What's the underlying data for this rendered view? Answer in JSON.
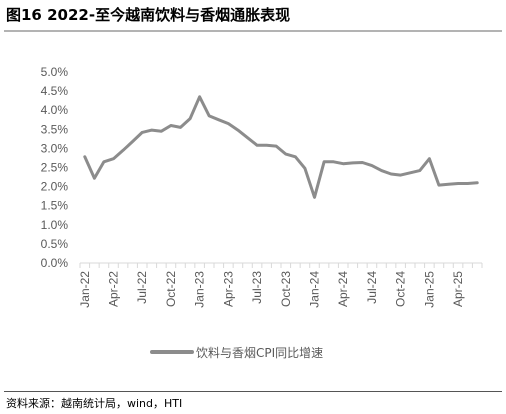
{
  "figure": {
    "title": "图16 2022-至今越南饮料与香烟通胀表现",
    "source": "资料来源：越南统计局，wind，HTI"
  },
  "colors": {
    "line": "#8c8c8c",
    "axis": "#d9d9d9",
    "text": "#595959",
    "rule": "#b3b3b3"
  },
  "chart_data": {
    "type": "line",
    "title": "",
    "xlabel": "",
    "ylabel": "",
    "ylim": [
      0,
      5
    ],
    "y_ticks": [
      "0.0%",
      "0.5%",
      "1.0%",
      "1.5%",
      "2.0%",
      "2.5%",
      "3.0%",
      "3.5%",
      "4.0%",
      "4.5%",
      "5.0%"
    ],
    "x_tick_labels": [
      "Jan-22",
      "Apr-22",
      "Jul-22",
      "Oct-22",
      "Jan-23",
      "Apr-23",
      "Jul-23",
      "Oct-23",
      "Jan-24",
      "Apr-24",
      "Jul-24",
      "Oct-24",
      "Jan-25",
      "Apr-25"
    ],
    "legend_position": "bottom",
    "grid": false,
    "x": [
      "Jan-22",
      "Feb-22",
      "Mar-22",
      "Apr-22",
      "May-22",
      "Jun-22",
      "Jul-22",
      "Aug-22",
      "Sep-22",
      "Oct-22",
      "Nov-22",
      "Dec-22",
      "Jan-23",
      "Feb-23",
      "Mar-23",
      "Apr-23",
      "May-23",
      "Jun-23",
      "Jul-23",
      "Aug-23",
      "Sep-23",
      "Oct-23",
      "Nov-23",
      "Dec-23",
      "Jan-24",
      "Feb-24",
      "Mar-24",
      "Apr-24",
      "May-24",
      "Jun-24",
      "Jul-24",
      "Aug-24",
      "Sep-24",
      "Oct-24",
      "Nov-24",
      "Dec-24",
      "Jan-25",
      "Feb-25",
      "Mar-25",
      "Apr-25",
      "May-25",
      "Jun-25"
    ],
    "series": [
      {
        "name": "饮料与香烟CPI同比增速",
        "values": [
          2.78,
          2.22,
          2.65,
          2.73,
          2.95,
          3.18,
          3.42,
          3.48,
          3.45,
          3.6,
          3.55,
          3.78,
          4.35,
          3.85,
          3.75,
          3.65,
          3.48,
          3.28,
          3.08,
          3.08,
          3.06,
          2.85,
          2.78,
          2.48,
          1.72,
          2.65,
          2.65,
          2.6,
          2.62,
          2.63,
          2.55,
          2.42,
          2.33,
          2.3,
          2.36,
          2.42,
          2.73,
          2.04,
          2.06,
          2.08,
          2.08,
          2.1
        ]
      }
    ]
  }
}
